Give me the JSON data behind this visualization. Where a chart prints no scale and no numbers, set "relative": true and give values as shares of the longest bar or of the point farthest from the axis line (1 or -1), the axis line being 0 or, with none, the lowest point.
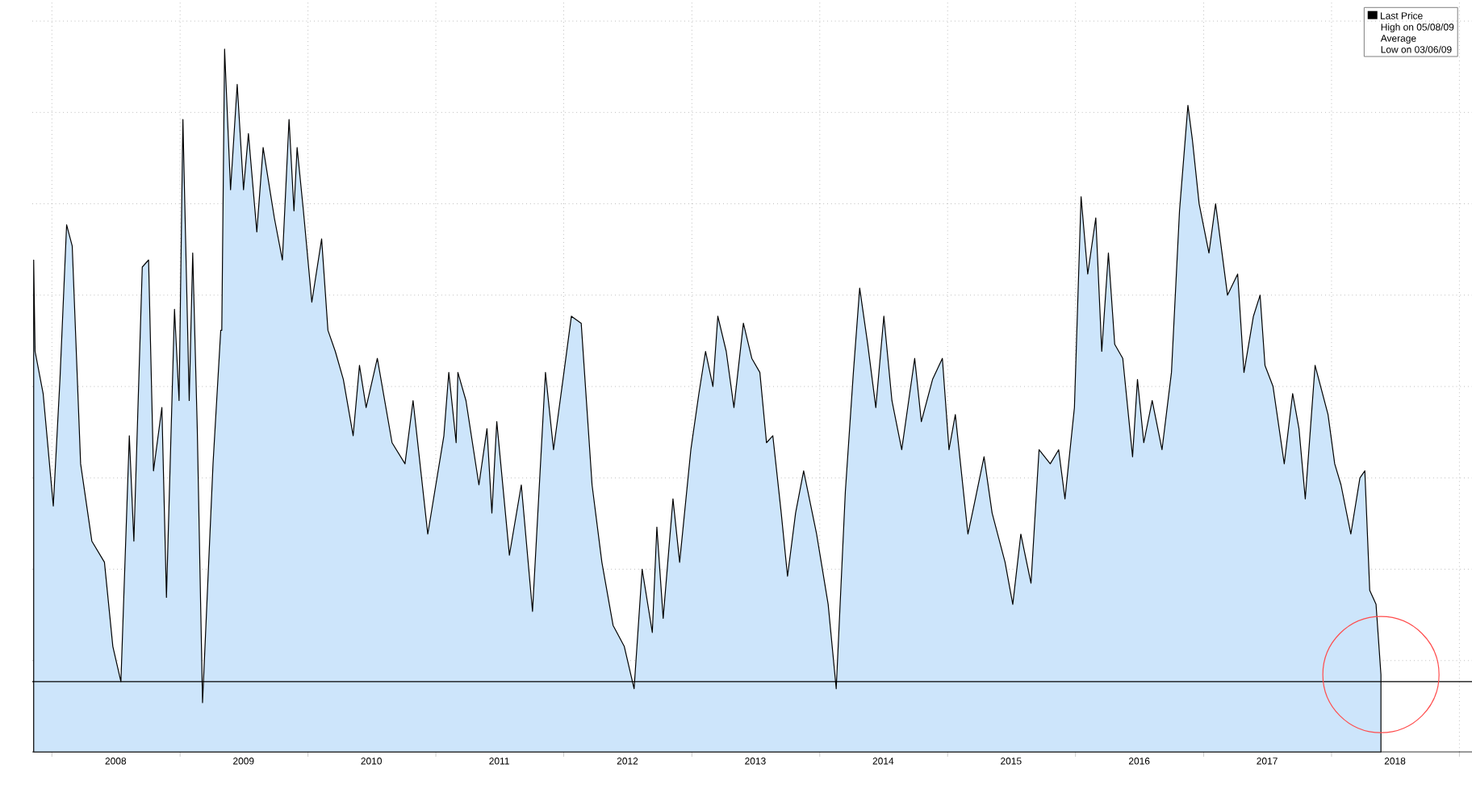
{
  "chart_data": {
    "type": "area",
    "relative": true,
    "grid": true,
    "legend": "top right",
    "annotations": [
      "High on 05/08/09",
      "Average",
      "Low on 03/06/09"
    ],
    "xlim": [
      "2007-11-06",
      "2019-02-06"
    ],
    "xticks": [
      {
        "value": "2008-01-01",
        "label": null
      },
      {
        "value": "2008-07-01",
        "label": "2008"
      },
      {
        "value": "2009-01-01",
        "label": null
      },
      {
        "value": "2009-07-01",
        "label": "2009"
      },
      {
        "value": "2010-01-01",
        "label": null
      },
      {
        "value": "2010-07-01",
        "label": "2010"
      },
      {
        "value": "2011-01-01",
        "label": null
      },
      {
        "value": "2011-07-01",
        "label": "2011"
      },
      {
        "value": "2012-01-01",
        "label": null
      },
      {
        "value": "2012-07-01",
        "label": "2012"
      },
      {
        "value": "2013-01-01",
        "label": null
      },
      {
        "value": "2013-07-01",
        "label": "2013"
      },
      {
        "value": "2014-01-01",
        "label": null
      },
      {
        "value": "2014-07-01",
        "label": "2014"
      },
      {
        "value": "2015-01-01",
        "label": null
      },
      {
        "value": "2015-07-01",
        "label": "2015"
      },
      {
        "value": "2016-01-01",
        "label": null
      },
      {
        "value": "2016-07-01",
        "label": "2016"
      },
      {
        "value": "2017-01-01",
        "label": null
      },
      {
        "value": "2017-07-01",
        "label": "2017"
      },
      {
        "value": "2018-01-01",
        "label": null
      },
      {
        "value": "2018-07-01",
        "label": "2018"
      },
      {
        "value": "2019-01-01",
        "label": null
      }
    ],
    "ref_lines": [
      {
        "axis": "y",
        "value": 0.1,
        "color": "#000000"
      }
    ],
    "series": [
      {
        "name": "Last Price",
        "color": "#cde5fb",
        "x": [
          "2007-11-10",
          "2007-11-14",
          "2007-12-07",
          "2008-01-05",
          "2008-01-24",
          "2008-02-12",
          "2008-02-28",
          "2008-03-23",
          "2008-04-24",
          "2008-05-30",
          "2008-06-23",
          "2008-07-16",
          "2008-08-09",
          "2008-08-22",
          "2008-09-15",
          "2008-10-03",
          "2008-10-17",
          "2008-11-10",
          "2008-11-23",
          "2008-12-16",
          "2008-12-29",
          "2009-01-09",
          "2009-01-27",
          "2009-02-06",
          "2009-02-19",
          "2009-03-06",
          "2009-04-05",
          "2009-04-27",
          "2009-04-30",
          "2009-05-08",
          "2009-05-25",
          "2009-06-13",
          "2009-07-01",
          "2009-07-15",
          "2009-08-08",
          "2009-08-26",
          "2009-09-27",
          "2009-10-20",
          "2009-11-08",
          "2009-11-22",
          "2009-12-01",
          "2009-12-19",
          "2010-01-12",
          "2010-02-09",
          "2010-02-27",
          "2010-03-20",
          "2010-04-12",
          "2010-05-10",
          "2010-05-28",
          "2010-06-16",
          "2010-07-18",
          "2010-08-29",
          "2010-10-05",
          "2010-10-28",
          "2010-12-09",
          "2011-01-24",
          "2011-02-07",
          "2011-02-28",
          "2011-03-05",
          "2011-03-28",
          "2011-05-04",
          "2011-05-27",
          "2011-06-10",
          "2011-06-24",
          "2011-07-30",
          "2011-09-02",
          "2011-10-04",
          "2011-11-10",
          "2011-12-03",
          "2011-12-30",
          "2012-01-23",
          "2012-02-20",
          "2012-03-22",
          "2012-04-19",
          "2012-05-21",
          "2012-06-22",
          "2012-07-20",
          "2012-08-12",
          "2012-09-10",
          "2012-09-23",
          "2012-10-11",
          "2012-11-08",
          "2012-11-27",
          "2012-12-29",
          "2013-01-21",
          "2013-02-09",
          "2013-03-02",
          "2013-03-16",
          "2013-04-09",
          "2013-05-01",
          "2013-05-28",
          "2013-06-21",
          "2013-07-14",
          "2013-08-02",
          "2013-08-20",
          "2013-09-13",
          "2013-10-01",
          "2013-10-24",
          "2013-11-16",
          "2013-12-23",
          "2014-01-25",
          "2014-02-17",
          "2014-03-15",
          "2014-04-07",
          "2014-04-25",
          "2014-05-18",
          "2014-06-10",
          "2014-07-03",
          "2014-07-26",
          "2014-08-23",
          "2014-09-29",
          "2014-10-18",
          "2014-11-19",
          "2014-12-17",
          "2015-01-05",
          "2015-01-23",
          "2015-02-28",
          "2015-03-17",
          "2015-04-15",
          "2015-05-08",
          "2015-06-14",
          "2015-07-06",
          "2015-07-29",
          "2015-08-27",
          "2015-09-19",
          "2015-10-21",
          "2015-11-14",
          "2015-12-02",
          "2015-12-29",
          "2016-01-17",
          "2016-02-05",
          "2016-02-28",
          "2016-03-16",
          "2016-04-04",
          "2016-04-22",
          "2016-05-15",
          "2016-06-12",
          "2016-06-26",
          "2016-07-14",
          "2016-08-07",
          "2016-09-04",
          "2016-10-01",
          "2016-10-24",
          "2016-11-17",
          "2016-11-30",
          "2016-12-19",
          "2017-01-16",
          "2017-02-04",
          "2017-03-10",
          "2017-04-08",
          "2017-04-26",
          "2017-05-23",
          "2017-06-11",
          "2017-06-25",
          "2017-07-18",
          "2017-08-19",
          "2017-09-12",
          "2017-09-30",
          "2017-10-18",
          "2017-11-15",
          "2017-12-22",
          "2018-01-10",
          "2018-01-28",
          "2018-02-25",
          "2018-03-23",
          "2018-04-06",
          "2018-04-20",
          "2018-05-08",
          "2018-05-22"
        ],
        "values": [
          0.7,
          0.57,
          0.51,
          0.35,
          0.53,
          0.75,
          0.72,
          0.41,
          0.3,
          0.27,
          0.15,
          0.1,
          0.45,
          0.3,
          0.69,
          0.7,
          0.4,
          0.49,
          0.22,
          0.63,
          0.5,
          0.9,
          0.5,
          0.71,
          0.46,
          0.07,
          0.41,
          0.6,
          0.6,
          1.0,
          0.8,
          0.95,
          0.8,
          0.88,
          0.74,
          0.86,
          0.76,
          0.7,
          0.9,
          0.77,
          0.86,
          0.77,
          0.64,
          0.73,
          0.6,
          0.57,
          0.53,
          0.45,
          0.55,
          0.49,
          0.56,
          0.44,
          0.41,
          0.5,
          0.31,
          0.45,
          0.54,
          0.44,
          0.54,
          0.5,
          0.38,
          0.46,
          0.34,
          0.47,
          0.28,
          0.38,
          0.2,
          0.54,
          0.43,
          0.53,
          0.62,
          0.61,
          0.38,
          0.27,
          0.18,
          0.15,
          0.09,
          0.26,
          0.17,
          0.32,
          0.19,
          0.36,
          0.27,
          0.43,
          0.51,
          0.57,
          0.52,
          0.62,
          0.57,
          0.49,
          0.61,
          0.56,
          0.54,
          0.44,
          0.45,
          0.34,
          0.25,
          0.34,
          0.4,
          0.31,
          0.21,
          0.09,
          0.37,
          0.54,
          0.66,
          0.58,
          0.49,
          0.62,
          0.5,
          0.43,
          0.56,
          0.47,
          0.53,
          0.56,
          0.43,
          0.48,
          0.31,
          0.35,
          0.42,
          0.34,
          0.27,
          0.21,
          0.31,
          0.24,
          0.43,
          0.41,
          0.43,
          0.36,
          0.49,
          0.79,
          0.68,
          0.76,
          0.57,
          0.71,
          0.58,
          0.56,
          0.42,
          0.53,
          0.44,
          0.5,
          0.43,
          0.54,
          0.77,
          0.92,
          0.87,
          0.78,
          0.71,
          0.78,
          0.65,
          0.68,
          0.54,
          0.62,
          0.65,
          0.55,
          0.52,
          0.41,
          0.51,
          0.46,
          0.36,
          0.55,
          0.48,
          0.41,
          0.38,
          0.31,
          0.39,
          0.4,
          0.23,
          0.21,
          0.11
        ]
      }
    ]
  }
}
